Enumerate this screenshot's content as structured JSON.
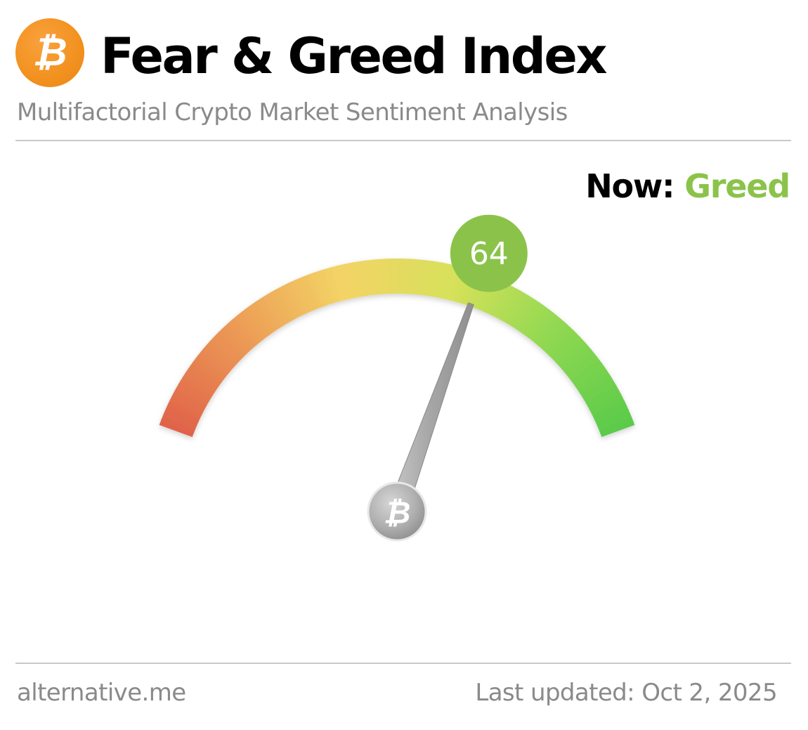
{
  "header": {
    "logo_icon": "bitcoin-icon",
    "logo_glyph": "₿",
    "logo_color": "#f7931a",
    "title": "Fear & Greed Index",
    "subtitle": "Multifactorial Crypto Market Sentiment Analysis"
  },
  "status": {
    "now_label": "Now:",
    "classification": "Greed",
    "classification_color": "#8bc34a"
  },
  "gauge": {
    "value": 64,
    "min": 0,
    "max": 100,
    "score_badge_color": "#8bc34a",
    "hub_icon": "bitcoin-icon",
    "hub_glyph": "₿",
    "gradient_stops": [
      "#e0634a",
      "#ec9a55",
      "#f3d366",
      "#d7e15a",
      "#8fd851",
      "#5bcb4a"
    ]
  },
  "footer": {
    "source": "alternative.me",
    "last_updated": "Last updated: Oct 2, 2025"
  }
}
